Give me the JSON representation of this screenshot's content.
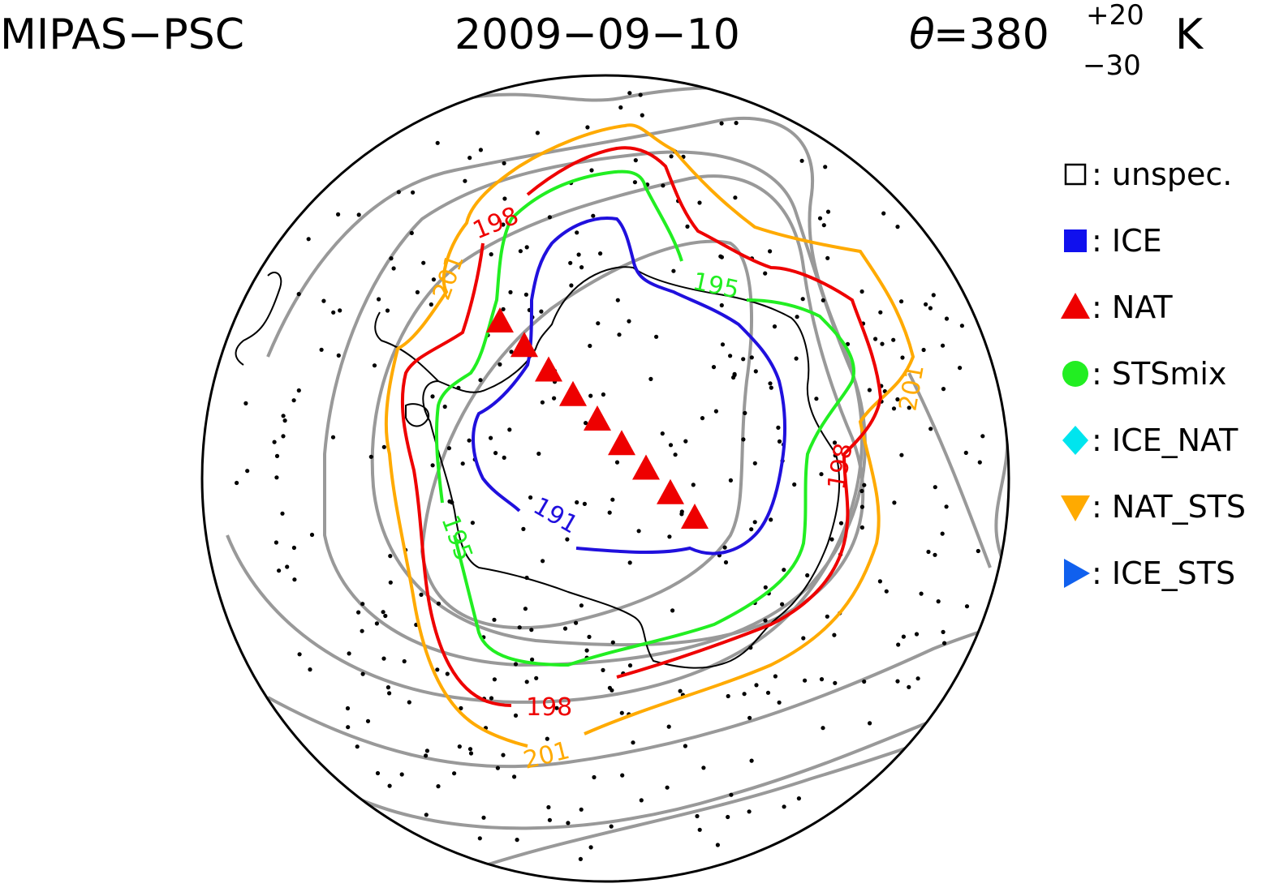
{
  "title": {
    "instrument": "MIPAS−PSC",
    "date": "2009−09−10",
    "theta_symbol": "θ",
    "theta_eq": "=380",
    "theta_plus": "+20",
    "theta_minus": "−30",
    "theta_unit": "K"
  },
  "legend": [
    {
      "symbol": "open-square-icon",
      "label": ": unspec.",
      "color": "#000000"
    },
    {
      "symbol": "filled-square-icon",
      "label": ": ICE",
      "color": "#1010ee"
    },
    {
      "symbol": "triangle-up-icon",
      "label": ": NAT",
      "color": "#ee0000"
    },
    {
      "symbol": "circle-icon",
      "label": ": STSmix",
      "color": "#22ee22"
    },
    {
      "symbol": "diamond-icon",
      "label": ": ICE_NAT",
      "color": "#00e5ee"
    },
    {
      "symbol": "triangle-down-icon",
      "label": ": NAT_STS",
      "color": "#ffaa00"
    },
    {
      "symbol": "triangle-right-icon",
      "label": ": ICE_STS",
      "color": "#1060ee"
    }
  ],
  "contours": [
    {
      "level": "191",
      "color": "#2010dd",
      "label": "191"
    },
    {
      "level": "195",
      "color": "#22ee22",
      "label": "195"
    },
    {
      "level": "198",
      "color": "#ee0000",
      "label": "198"
    },
    {
      "level": "201",
      "color": "#ffaa00",
      "label": "201"
    }
  ],
  "colors": {
    "background_contours": "#999999",
    "coastline": "#000000",
    "observation_points": "#000000"
  },
  "nat_detections": 9
}
